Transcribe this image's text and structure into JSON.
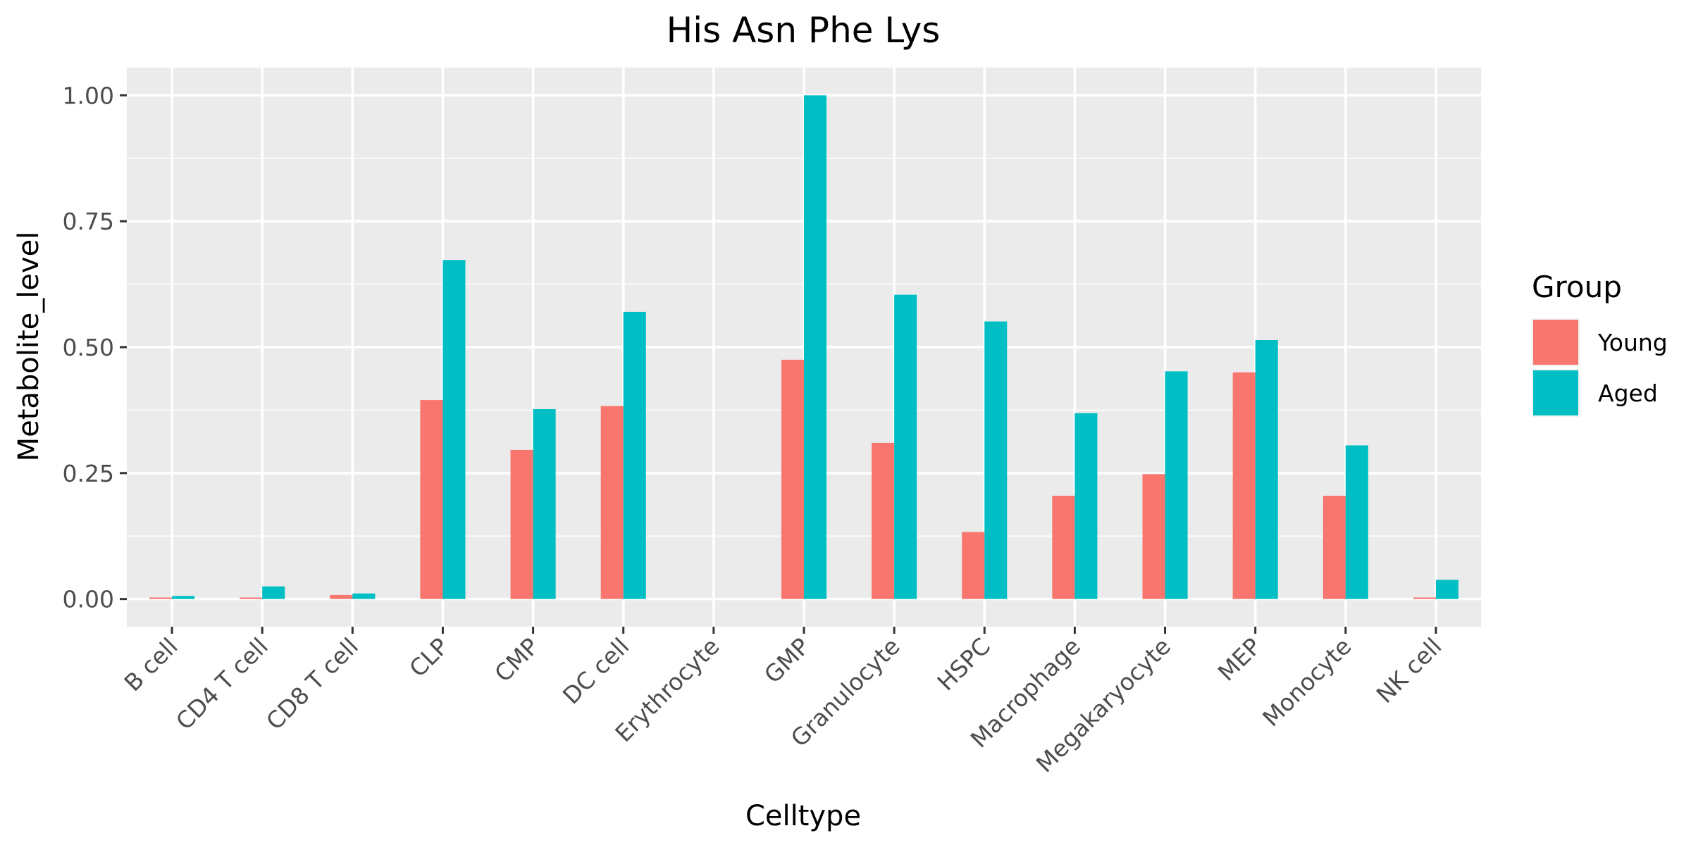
{
  "chart_data": {
    "type": "bar",
    "title": "His Asn Phe Lys",
    "xlabel": "Celltype",
    "ylabel": "Metabolite_level",
    "ylim": [
      -0.055,
      1.055
    ],
    "yticks": [
      "0.00",
      "0.25",
      "0.50",
      "0.75",
      "1.00"
    ],
    "ytick_values": [
      0,
      0.25,
      0.5,
      0.75,
      1.0
    ],
    "grid": true,
    "categories": [
      "B cell",
      "CD4 T cell",
      "CD8 T cell",
      "CLP",
      "CMP",
      "DC cell",
      "Erythrocyte",
      "GMP",
      "Granulocyte",
      "HSPC",
      "Macrophage",
      "Megakaryocyte",
      "MEP",
      "Monocyte",
      "NK cell"
    ],
    "series": [
      {
        "name": "Young",
        "color": "#F8766D",
        "values": [
          0.003,
          0.003,
          0.008,
          0.395,
          0.296,
          0.383,
          0.0,
          0.475,
          0.31,
          0.133,
          0.205,
          0.248,
          0.45,
          0.205,
          0.003
        ]
      },
      {
        "name": "Aged",
        "color": "#00BFC4",
        "values": [
          0.006,
          0.025,
          0.011,
          0.673,
          0.377,
          0.57,
          0.0,
          1.0,
          0.604,
          0.551,
          0.369,
          0.452,
          0.514,
          0.305,
          0.038
        ]
      }
    ],
    "legend": {
      "title": "Group",
      "position": "right"
    }
  }
}
